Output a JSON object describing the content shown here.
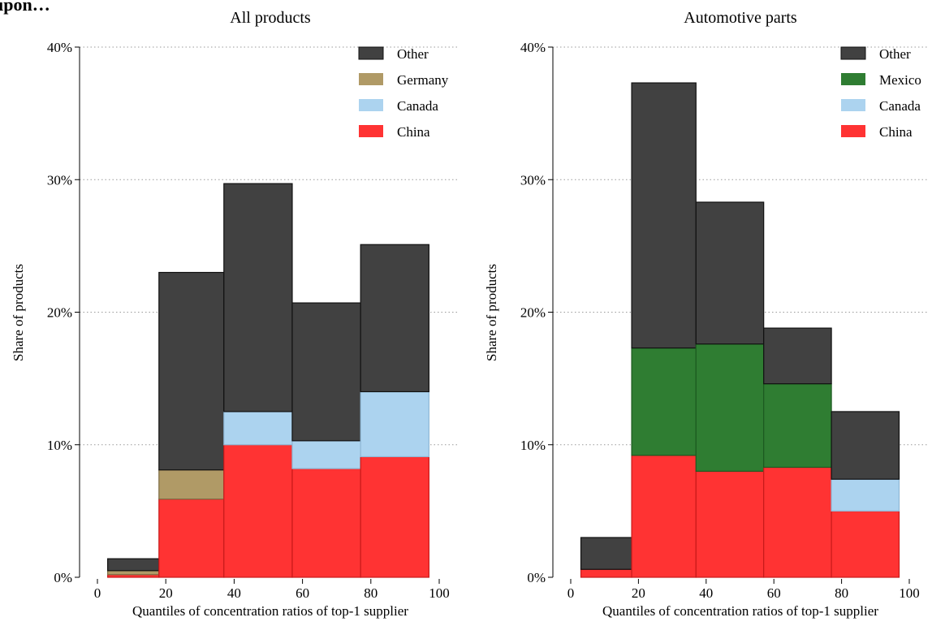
{
  "header_fragment": "upon…",
  "colors": {
    "Other": "#414141",
    "Germany": "#b09a66",
    "Mexico": "#2f7d32",
    "Canada": "#acd3ef",
    "China": "#ff3333"
  },
  "chart_data": [
    {
      "type": "bar",
      "stacked": true,
      "title": "All products",
      "xlabel": "Quantiles of concentration ratios of top-1 supplier",
      "ylabel": "Share of products",
      "xlim": [
        0,
        100
      ],
      "ylim": [
        0,
        40
      ],
      "xticks": [
        "0",
        "20",
        "40",
        "60",
        "80",
        "100"
      ],
      "yticks": [
        "0%",
        "10%",
        "20%",
        "30%",
        "40%"
      ],
      "grid": "horizontal dotted",
      "legend_placement": "top-right",
      "legend_order": [
        "Other",
        "Germany",
        "Canada",
        "China"
      ],
      "bins": [
        [
          3,
          18
        ],
        [
          18,
          37
        ],
        [
          37,
          57
        ],
        [
          57,
          77
        ],
        [
          77,
          97
        ]
      ],
      "series": [
        {
          "name": "China",
          "values": [
            0.2,
            5.9,
            10.0,
            8.2,
            9.1
          ]
        },
        {
          "name": "Canada",
          "values": [
            0.0,
            0.0,
            2.5,
            2.1,
            4.9
          ]
        },
        {
          "name": "Germany",
          "values": [
            0.3,
            2.2,
            0.0,
            0.0,
            0.0
          ]
        },
        {
          "name": "Other",
          "values": [
            0.9,
            14.9,
            17.2,
            10.4,
            11.1
          ]
        }
      ]
    },
    {
      "type": "bar",
      "stacked": true,
      "title": "Automotive parts",
      "xlabel": "Quantiles of concentration ratios of top-1 supplier",
      "ylabel": "Share of products",
      "xlim": [
        0,
        100
      ],
      "ylim": [
        0,
        40
      ],
      "xticks": [
        "0",
        "20",
        "40",
        "60",
        "80",
        "100"
      ],
      "yticks": [
        "0%",
        "10%",
        "20%",
        "30%",
        "40%"
      ],
      "grid": "horizontal dotted",
      "legend_placement": "top-right",
      "legend_order": [
        "Other",
        "Mexico",
        "Canada",
        "China"
      ],
      "bins": [
        [
          3,
          18
        ],
        [
          18,
          37
        ],
        [
          37,
          57
        ],
        [
          57,
          77
        ],
        [
          77,
          97
        ]
      ],
      "series": [
        {
          "name": "China",
          "values": [
            0.6,
            9.2,
            8.0,
            8.3,
            5.0
          ]
        },
        {
          "name": "Canada",
          "values": [
            0.0,
            0.0,
            0.0,
            0.0,
            2.4
          ]
        },
        {
          "name": "Mexico",
          "values": [
            0.0,
            8.1,
            9.6,
            6.3,
            0.0
          ]
        },
        {
          "name": "Other",
          "values": [
            2.4,
            20.0,
            10.7,
            4.2,
            5.1
          ]
        }
      ]
    }
  ]
}
